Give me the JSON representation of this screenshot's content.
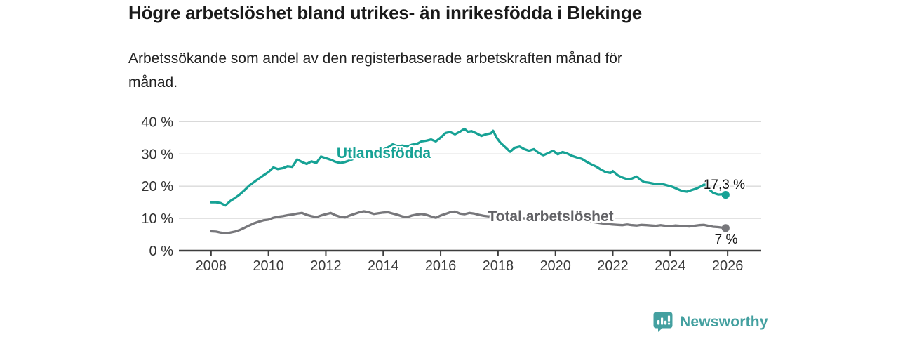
{
  "branding": {
    "name": "Newsworthy",
    "color": "#44a0a0",
    "icon": "bar-chart-speech-bubble-icon"
  },
  "chart_data": {
    "type": "line",
    "title": "Högre arbetslöshet bland utrikes- än inrikesfödda i Blekinge",
    "subtitle": "Arbetssökande som andel av den registerbaserade arbetskraften månad för månad.",
    "xlabel": "",
    "ylabel": "",
    "unit": "%",
    "grid": "horizontal",
    "legend": "inline-labels",
    "xlim": [
      2006.88,
      2027.17
    ],
    "ylim": [
      0,
      42.8
    ],
    "y_ticks": [
      {
        "value": 0,
        "label": "0 %"
      },
      {
        "value": 10,
        "label": "10 %"
      },
      {
        "value": 20,
        "label": "20 %"
      },
      {
        "value": 30,
        "label": "30 %"
      },
      {
        "value": 40,
        "label": "40 %"
      }
    ],
    "x_ticks": [
      {
        "value": 2008,
        "label": "2008"
      },
      {
        "value": 2010,
        "label": "2010"
      },
      {
        "value": 2012,
        "label": "2012"
      },
      {
        "value": 2014,
        "label": "2014"
      },
      {
        "value": 2016,
        "label": "2016"
      },
      {
        "value": 2018,
        "label": "2018"
      },
      {
        "value": 2020,
        "label": "2020"
      },
      {
        "value": 2022,
        "label": "2022"
      },
      {
        "value": 2024,
        "label": "2024"
      },
      {
        "value": 2026,
        "label": "2026"
      }
    ],
    "series": [
      {
        "name": "Utlandsfödda",
        "color": "#17a295",
        "end_label": "17,3 %",
        "end_value": 17.3,
        "points": [
          [
            2008.0,
            15.0
          ],
          [
            2008.17,
            15.0
          ],
          [
            2008.33,
            14.8
          ],
          [
            2008.5,
            14.0
          ],
          [
            2008.67,
            15.4
          ],
          [
            2008.83,
            16.3
          ],
          [
            2009.0,
            17.4
          ],
          [
            2009.17,
            18.8
          ],
          [
            2009.33,
            20.2
          ],
          [
            2009.5,
            21.3
          ],
          [
            2009.67,
            22.4
          ],
          [
            2009.83,
            23.4
          ],
          [
            2010.0,
            24.4
          ],
          [
            2010.17,
            25.8
          ],
          [
            2010.33,
            25.3
          ],
          [
            2010.5,
            25.6
          ],
          [
            2010.67,
            26.2
          ],
          [
            2010.83,
            26.0
          ],
          [
            2011.0,
            28.3
          ],
          [
            2011.17,
            27.5
          ],
          [
            2011.33,
            26.9
          ],
          [
            2011.5,
            27.7
          ],
          [
            2011.67,
            27.2
          ],
          [
            2011.83,
            29.2
          ],
          [
            2012.0,
            28.7
          ],
          [
            2012.17,
            28.2
          ],
          [
            2012.33,
            27.6
          ],
          [
            2012.5,
            27.2
          ],
          [
            2012.67,
            27.5
          ],
          [
            2012.83,
            28.0
          ],
          [
            2013.0,
            28.6
          ],
          [
            2013.17,
            29.3
          ],
          [
            2013.33,
            29.0
          ],
          [
            2013.5,
            29.8
          ],
          [
            2013.67,
            30.3
          ],
          [
            2013.83,
            30.9
          ],
          [
            2014.0,
            31.3
          ],
          [
            2014.17,
            32.1
          ],
          [
            2014.33,
            33.0
          ],
          [
            2014.5,
            32.4
          ],
          [
            2014.67,
            32.6
          ],
          [
            2014.83,
            32.3
          ],
          [
            2015.0,
            32.9
          ],
          [
            2015.17,
            33.1
          ],
          [
            2015.33,
            33.9
          ],
          [
            2015.5,
            34.1
          ],
          [
            2015.67,
            34.5
          ],
          [
            2015.83,
            33.9
          ],
          [
            2016.0,
            35.1
          ],
          [
            2016.17,
            36.5
          ],
          [
            2016.33,
            36.8
          ],
          [
            2016.5,
            36.1
          ],
          [
            2016.67,
            36.9
          ],
          [
            2016.83,
            37.8
          ],
          [
            2016.95,
            36.9
          ],
          [
            2017.08,
            37.1
          ],
          [
            2017.25,
            36.4
          ],
          [
            2017.42,
            35.6
          ],
          [
            2017.58,
            36.1
          ],
          [
            2017.75,
            36.4
          ],
          [
            2017.83,
            37.2
          ],
          [
            2017.95,
            35.1
          ],
          [
            2018.08,
            33.5
          ],
          [
            2018.25,
            32.1
          ],
          [
            2018.42,
            30.7
          ],
          [
            2018.58,
            31.9
          ],
          [
            2018.75,
            32.3
          ],
          [
            2018.92,
            31.5
          ],
          [
            2019.08,
            31.0
          ],
          [
            2019.25,
            31.5
          ],
          [
            2019.42,
            30.3
          ],
          [
            2019.58,
            29.6
          ],
          [
            2019.75,
            30.3
          ],
          [
            2019.92,
            31.0
          ],
          [
            2020.08,
            29.9
          ],
          [
            2020.25,
            30.6
          ],
          [
            2020.42,
            30.1
          ],
          [
            2020.58,
            29.4
          ],
          [
            2020.75,
            28.9
          ],
          [
            2020.92,
            28.5
          ],
          [
            2021.08,
            27.6
          ],
          [
            2021.25,
            26.8
          ],
          [
            2021.42,
            26.1
          ],
          [
            2021.58,
            25.2
          ],
          [
            2021.75,
            24.4
          ],
          [
            2021.92,
            24.1
          ],
          [
            2022.0,
            24.7
          ],
          [
            2022.17,
            23.4
          ],
          [
            2022.33,
            22.7
          ],
          [
            2022.5,
            22.2
          ],
          [
            2022.67,
            22.4
          ],
          [
            2022.83,
            23.0
          ],
          [
            2022.95,
            22.1
          ],
          [
            2023.08,
            21.3
          ],
          [
            2023.25,
            21.1
          ],
          [
            2023.42,
            20.8
          ],
          [
            2023.58,
            20.7
          ],
          [
            2023.75,
            20.6
          ],
          [
            2023.92,
            20.2
          ],
          [
            2024.08,
            19.8
          ],
          [
            2024.25,
            19.1
          ],
          [
            2024.42,
            18.5
          ],
          [
            2024.58,
            18.3
          ],
          [
            2024.75,
            18.8
          ],
          [
            2024.92,
            19.3
          ],
          [
            2025.08,
            20.0
          ],
          [
            2025.2,
            20.6
          ],
          [
            2025.33,
            19.2
          ],
          [
            2025.5,
            17.9
          ],
          [
            2025.67,
            17.4
          ],
          [
            2025.83,
            17.5
          ],
          [
            2025.93,
            17.3
          ]
        ]
      },
      {
        "name": "Total arbetslöshet",
        "color": "#77777b",
        "label_color": "#626266",
        "end_label": "7 %",
        "end_value": 7.0,
        "points": [
          [
            2008.0,
            6.0
          ],
          [
            2008.17,
            5.9
          ],
          [
            2008.33,
            5.6
          ],
          [
            2008.5,
            5.4
          ],
          [
            2008.67,
            5.6
          ],
          [
            2008.83,
            5.9
          ],
          [
            2009.0,
            6.4
          ],
          [
            2009.17,
            7.1
          ],
          [
            2009.33,
            7.8
          ],
          [
            2009.5,
            8.5
          ],
          [
            2009.67,
            9.0
          ],
          [
            2009.83,
            9.4
          ],
          [
            2010.0,
            9.6
          ],
          [
            2010.17,
            10.2
          ],
          [
            2010.33,
            10.5
          ],
          [
            2010.5,
            10.7
          ],
          [
            2010.67,
            11.0
          ],
          [
            2010.83,
            11.2
          ],
          [
            2011.0,
            11.5
          ],
          [
            2011.17,
            11.7
          ],
          [
            2011.33,
            11.1
          ],
          [
            2011.5,
            10.7
          ],
          [
            2011.67,
            10.4
          ],
          [
            2011.83,
            10.9
          ],
          [
            2012.0,
            11.3
          ],
          [
            2012.17,
            11.7
          ],
          [
            2012.33,
            11.0
          ],
          [
            2012.5,
            10.5
          ],
          [
            2012.67,
            10.3
          ],
          [
            2012.83,
            10.9
          ],
          [
            2013.0,
            11.4
          ],
          [
            2013.17,
            11.9
          ],
          [
            2013.33,
            12.2
          ],
          [
            2013.5,
            11.9
          ],
          [
            2013.67,
            11.4
          ],
          [
            2013.83,
            11.6
          ],
          [
            2014.0,
            11.8
          ],
          [
            2014.17,
            11.9
          ],
          [
            2014.33,
            11.5
          ],
          [
            2014.5,
            11.1
          ],
          [
            2014.67,
            10.6
          ],
          [
            2014.83,
            10.4
          ],
          [
            2015.0,
            10.9
          ],
          [
            2015.17,
            11.2
          ],
          [
            2015.33,
            11.4
          ],
          [
            2015.5,
            11.1
          ],
          [
            2015.67,
            10.6
          ],
          [
            2015.83,
            10.2
          ],
          [
            2016.0,
            10.9
          ],
          [
            2016.17,
            11.4
          ],
          [
            2016.33,
            11.9
          ],
          [
            2016.5,
            12.1
          ],
          [
            2016.67,
            11.5
          ],
          [
            2016.83,
            11.3
          ],
          [
            2017.0,
            11.7
          ],
          [
            2017.17,
            11.5
          ],
          [
            2017.33,
            11.1
          ],
          [
            2017.5,
            10.8
          ],
          [
            2017.67,
            10.6
          ],
          [
            2017.83,
            10.9
          ],
          [
            2018.0,
            10.5
          ],
          [
            2018.25,
            10.1
          ],
          [
            2018.5,
            10.0
          ],
          [
            2018.75,
            10.2
          ],
          [
            2019.0,
            9.9
          ],
          [
            2019.25,
            10.0
          ],
          [
            2019.5,
            9.6
          ],
          [
            2019.75,
            9.4
          ],
          [
            2020.0,
            9.7
          ],
          [
            2020.25,
            10.2
          ],
          [
            2020.5,
            10.3
          ],
          [
            2020.75,
            9.9
          ],
          [
            2021.0,
            9.5
          ],
          [
            2021.25,
            9.0
          ],
          [
            2021.5,
            8.6
          ],
          [
            2021.75,
            8.3
          ],
          [
            2022.0,
            8.1
          ],
          [
            2022.17,
            8.0
          ],
          [
            2022.33,
            7.9
          ],
          [
            2022.5,
            8.1
          ],
          [
            2022.67,
            7.9
          ],
          [
            2022.83,
            7.8
          ],
          [
            2023.0,
            8.0
          ],
          [
            2023.17,
            7.9
          ],
          [
            2023.33,
            7.8
          ],
          [
            2023.5,
            7.7
          ],
          [
            2023.67,
            7.9
          ],
          [
            2023.83,
            7.7
          ],
          [
            2024.0,
            7.6
          ],
          [
            2024.17,
            7.8
          ],
          [
            2024.33,
            7.7
          ],
          [
            2024.5,
            7.6
          ],
          [
            2024.67,
            7.5
          ],
          [
            2024.83,
            7.7
          ],
          [
            2025.0,
            7.9
          ],
          [
            2025.17,
            8.0
          ],
          [
            2025.33,
            7.7
          ],
          [
            2025.5,
            7.4
          ],
          [
            2025.67,
            7.3
          ],
          [
            2025.83,
            7.1
          ],
          [
            2025.93,
            7.0
          ]
        ]
      }
    ]
  }
}
